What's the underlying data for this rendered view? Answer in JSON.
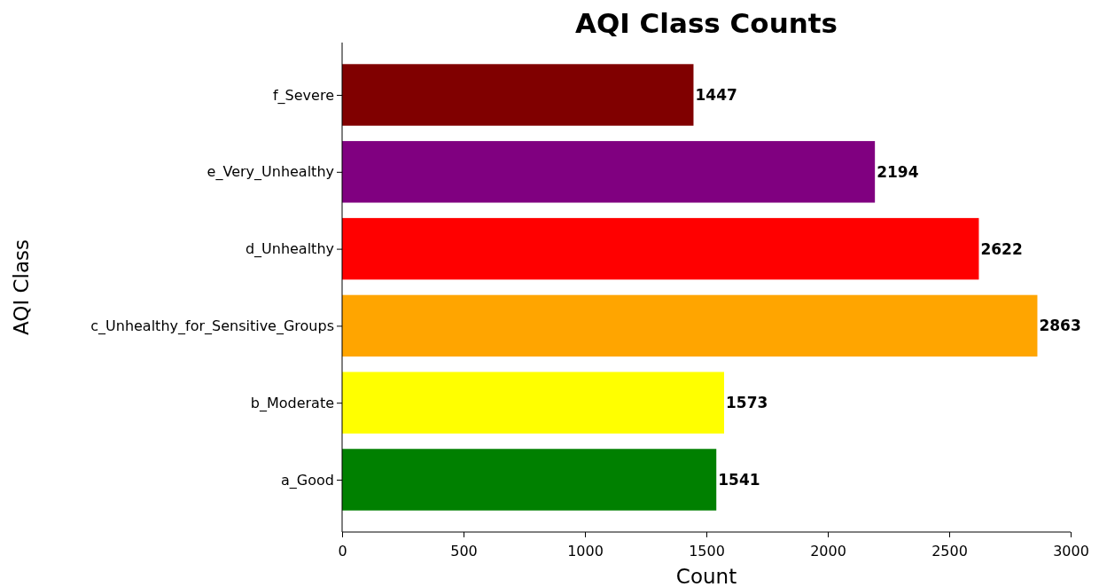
{
  "chart_data": {
    "type": "bar",
    "orientation": "horizontal",
    "title": "AQI Class Counts",
    "xlabel": "Count",
    "ylabel": "AQI Class",
    "categories": [
      "f_Severe",
      "e_Very_Unhealthy",
      "d_Unhealthy",
      "c_Unhealthy_for_Sensitive_Groups",
      "b_Moderate",
      "a_Good"
    ],
    "values": [
      1447,
      2194,
      2622,
      2863,
      1573,
      1541
    ],
    "colors": [
      "#800000",
      "#800080",
      "#ff0000",
      "#ffa500",
      "#ffff00",
      "#008000"
    ],
    "xlim": [
      0,
      3000
    ],
    "xticks": [
      0,
      500,
      1000,
      1500,
      2000,
      2500,
      3000
    ],
    "data_labels": true,
    "grid": false,
    "legend": false
  }
}
